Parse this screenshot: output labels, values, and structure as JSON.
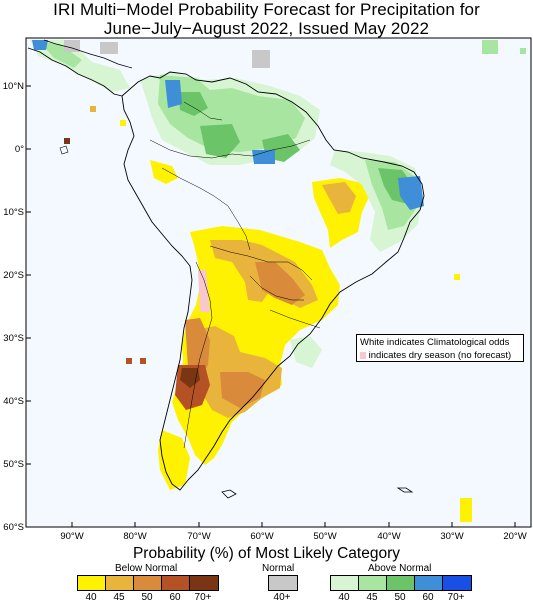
{
  "title": {
    "line1": "IRI Multi−Model Probability Forecast for Precipitation for",
    "line2": "June−July−August 2022, Issued May 2022"
  },
  "map": {
    "lat_labels": [
      "10°N",
      "0°",
      "10°S",
      "20°S",
      "30°S",
      "40°S",
      "50°S",
      "60°S"
    ],
    "lon_labels": [
      "90°W",
      "80°W",
      "70°W",
      "60°W",
      "50°W",
      "40°W",
      "30°W",
      "20°W"
    ],
    "region": "South America",
    "colors": {
      "below_40": "#fff200",
      "below_45": "#e8b43c",
      "below_50": "#d98a3a",
      "below_60": "#b55225",
      "below_70": "#7a3614",
      "normal_40": "#c8c8c8",
      "above_40": "#d7f5d2",
      "above_45": "#a7e5a0",
      "above_50": "#6cc468",
      "above_60": "#3f8fd8",
      "above_70": "#1a4fe6",
      "dry_season": "#f8c8cc",
      "background": "#f3f9ff"
    }
  },
  "note": {
    "line1": "White indicates Climatological odds",
    "line2": "indicates dry season (no forecast)"
  },
  "legend": {
    "title": "Probability (%) of Most Likely Category",
    "below": {
      "label": "Below Normal",
      "ticks": [
        "40",
        "45",
        "50",
        "60",
        "70+"
      ]
    },
    "normal": {
      "label": "Normal",
      "ticks": [
        "40+"
      ]
    },
    "above": {
      "label": "Above Normal",
      "ticks": [
        "40",
        "45",
        "50",
        "60",
        "70+"
      ]
    }
  }
}
